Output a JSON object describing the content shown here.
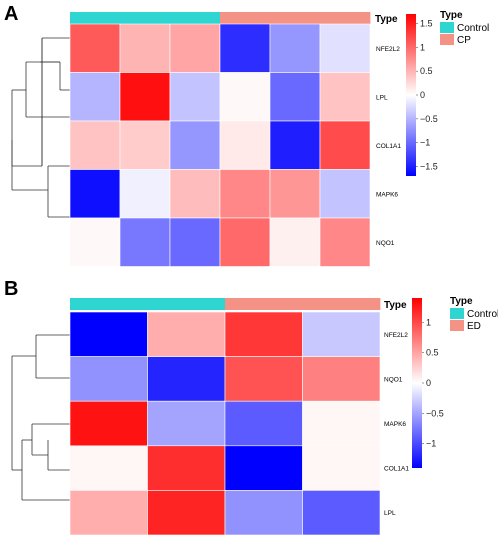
{
  "chart_data": [
    {
      "type": "heatmap",
      "panel_label": "A",
      "annotation_header": "Type",
      "annotation_values": [
        "Control",
        "Control",
        "Control",
        "CP",
        "CP",
        "CP"
      ],
      "rows": [
        "NFE2L2",
        "LPL",
        "COL1A1",
        "MAPK6",
        "NQO1"
      ],
      "values": [
        [
          1.1,
          0.5,
          0.6,
          -1.4,
          -0.7,
          -0.2
        ],
        [
          -0.5,
          1.6,
          -0.4,
          0.05,
          -1.0,
          0.4
        ],
        [
          0.4,
          0.35,
          -0.7,
          0.15,
          -1.5,
          1.2
        ],
        [
          -1.6,
          -0.1,
          0.45,
          0.8,
          0.7,
          -0.4
        ],
        [
          0.05,
          -0.9,
          -1.0,
          1.0,
          0.1,
          0.8
        ]
      ],
      "legend": {
        "color_scale": {
          "min": -1.7,
          "max": 1.7,
          "ticks": [
            1.5,
            1,
            0.5,
            0,
            -0.5,
            -1,
            -1.5
          ],
          "tick_labels": [
            "1.5",
            "1",
            "0.5",
            "0",
            "−0.5",
            "−1",
            "−1.5"
          ],
          "low_color": "#0000ff",
          "mid_color": "#ffffff",
          "high_color": "#ff0000"
        },
        "type_title": "Type",
        "type_entries": [
          {
            "name": "Control",
            "color": "#2ed5d1"
          },
          {
            "name": "CP",
            "color": "#f49385"
          }
        ]
      },
      "grid": false
    },
    {
      "type": "heatmap",
      "panel_label": "B",
      "annotation_header": "Type",
      "annotation_values": [
        "Control",
        "Control",
        "ED",
        "ED"
      ],
      "rows": [
        "NFE2L2",
        "NQO1",
        "MAPK6",
        "COL1A1",
        "LPL"
      ],
      "values": [
        [
          -1.4,
          0.45,
          1.1,
          -0.3
        ],
        [
          -0.6,
          -1.2,
          0.95,
          0.7
        ],
        [
          1.3,
          -0.5,
          -0.9,
          0.05
        ],
        [
          0.05,
          1.15,
          -1.4,
          0.05
        ],
        [
          0.45,
          1.2,
          -0.6,
          -0.9
        ]
      ],
      "legend": {
        "color_scale": {
          "min": -1.4,
          "max": 1.4,
          "ticks": [
            1,
            0.5,
            0,
            -0.5,
            -1
          ],
          "tick_labels": [
            "1",
            "0.5",
            "0",
            "−0.5",
            "−1"
          ],
          "low_color": "#0000ff",
          "mid_color": "#ffffff",
          "high_color": "#ff0000"
        },
        "type_title": "Type",
        "type_entries": [
          {
            "name": "Control",
            "color": "#2ed5d1"
          },
          {
            "name": "ED",
            "color": "#f49385"
          }
        ]
      },
      "grid": false
    }
  ]
}
